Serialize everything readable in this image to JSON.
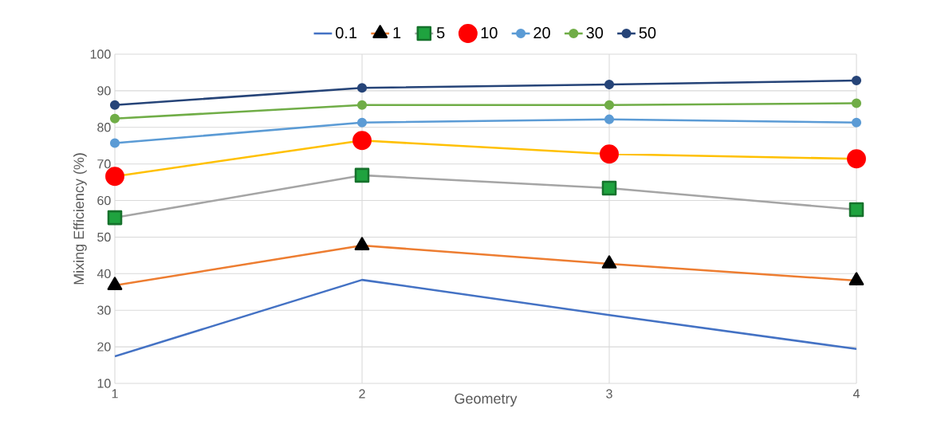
{
  "chart_data": {
    "type": "line",
    "xlabel": "Geometry",
    "ylabel": "Mixing Efficiency (%)",
    "x": [
      1,
      2,
      3,
      4
    ],
    "xlim": [
      1,
      4
    ],
    "xticks": [
      1,
      2,
      3,
      4
    ],
    "ylim": [
      10,
      100
    ],
    "yticks": [
      10,
      20,
      30,
      40,
      50,
      60,
      70,
      80,
      90,
      100
    ],
    "grid": true,
    "legend": "top",
    "series": [
      {
        "name": "0.1",
        "color": "#4472c4",
        "marker": "none",
        "values": [
          17.4,
          38.3,
          28.7,
          19.4
        ]
      },
      {
        "name": "1",
        "color": "#ed7d31",
        "marker": "triangle",
        "values": [
          36.8,
          47.7,
          42.7,
          38.1
        ]
      },
      {
        "name": "5",
        "color": "#a5a5a5",
        "marker": "square",
        "values": [
          55.3,
          66.9,
          63.4,
          57.5
        ]
      },
      {
        "name": "10",
        "color": "#ffc000",
        "marker": "circle",
        "values": [
          66.6,
          76.4,
          72.7,
          71.4
        ]
      },
      {
        "name": "20",
        "color": "#5b9bd5",
        "marker": "circle",
        "values": [
          75.7,
          81.3,
          82.2,
          81.3
        ]
      },
      {
        "name": "30",
        "color": "#70ad47",
        "marker": "circle",
        "values": [
          82.4,
          86.1,
          86.1,
          86.6
        ]
      },
      {
        "name": "50",
        "color": "#264478",
        "marker": "circle",
        "values": [
          86.1,
          90.8,
          91.7,
          92.8
        ]
      }
    ]
  }
}
